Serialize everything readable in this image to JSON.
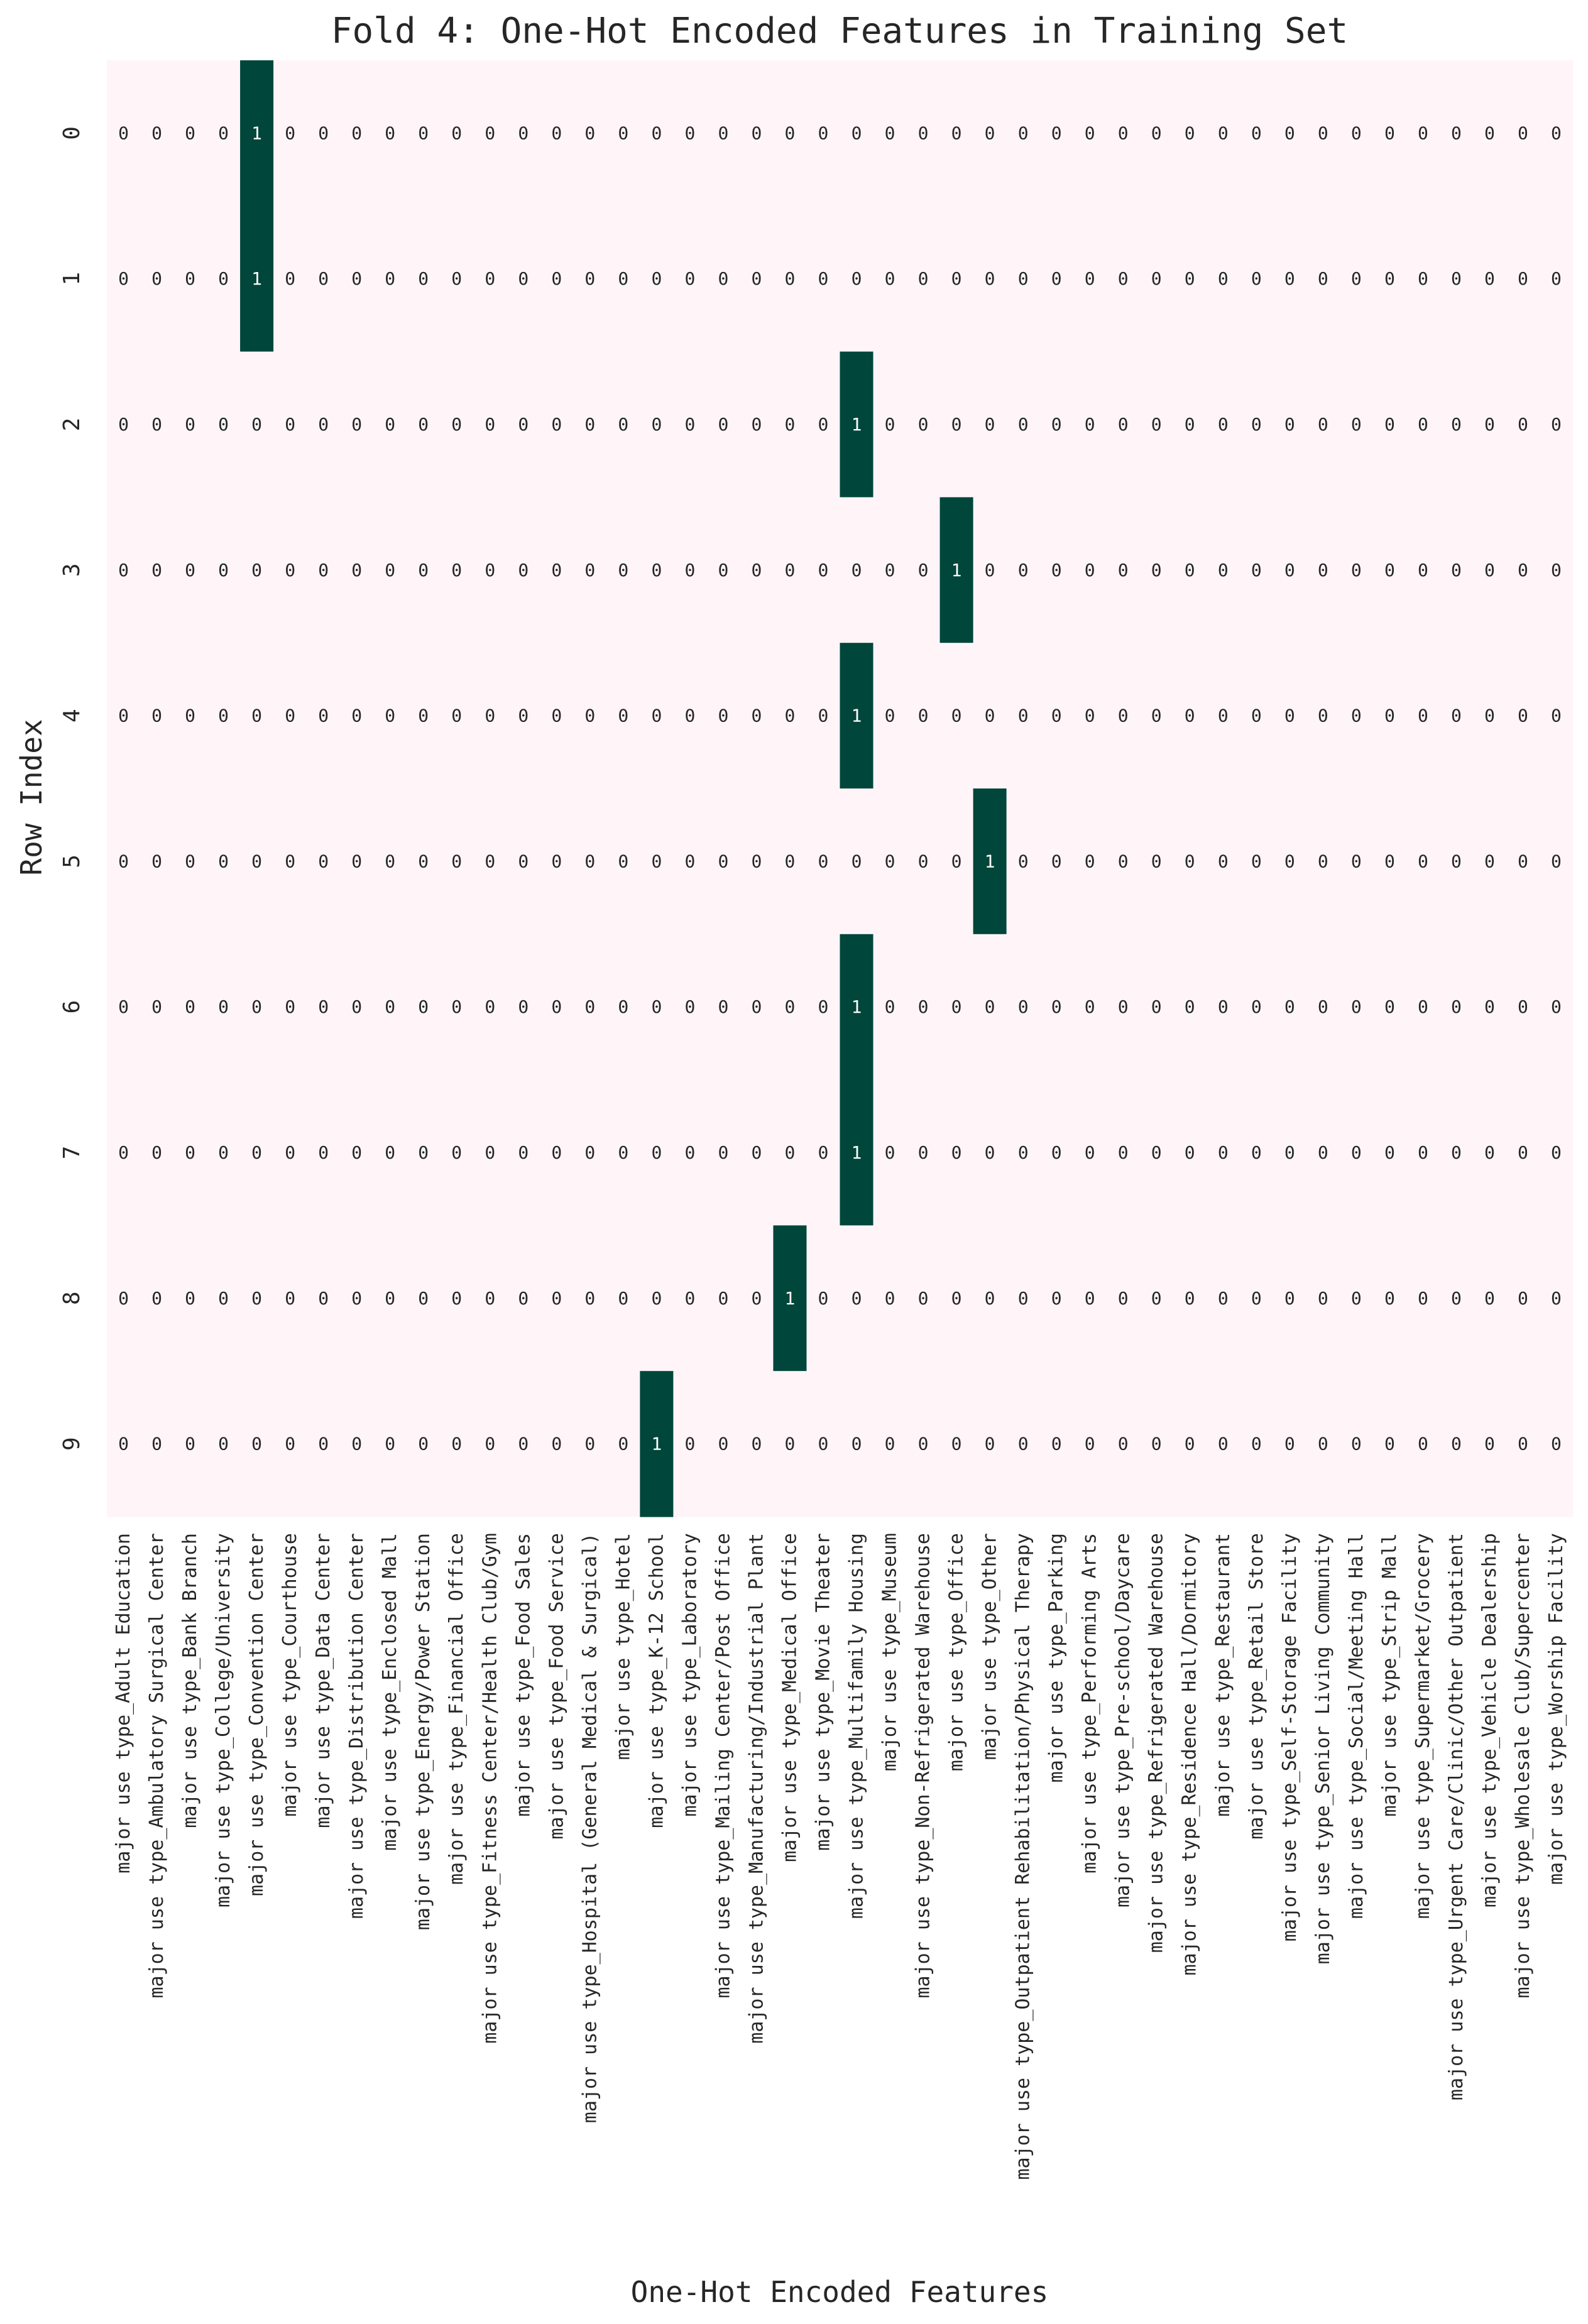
{
  "chart_data": {
    "type": "heatmap",
    "title": "Fold 4: One-Hot Encoded Features in Training Set",
    "xlabel": "One-Hot Encoded Features",
    "ylabel": "Row Index",
    "rows": [
      "0",
      "1",
      "2",
      "3",
      "4",
      "5",
      "6",
      "7",
      "8",
      "9"
    ],
    "columns": [
      "major use type_Adult Education",
      "major use type_Ambulatory Surgical Center",
      "major use type_Bank Branch",
      "major use type_College/University",
      "major use type_Convention Center",
      "major use type_Courthouse",
      "major use type_Data Center",
      "major use type_Distribution Center",
      "major use type_Enclosed Mall",
      "major use type_Energy/Power Station",
      "major use type_Financial Office",
      "major use type_Fitness Center/Health Club/Gym",
      "major use type_Food Sales",
      "major use type_Food Service",
      "major use type_Hospital (General Medical & Surgical)",
      "major use type_Hotel",
      "major use type_K-12 School",
      "major use type_Laboratory",
      "major use type_Mailing Center/Post Office",
      "major use type_Manufacturing/Industrial Plant",
      "major use type_Medical Office",
      "major use type_Movie Theater",
      "major use type_Multifamily Housing",
      "major use type_Museum",
      "major use type_Non-Refrigerated Warehouse",
      "major use type_Office",
      "major use type_Other",
      "major use type_Outpatient Rehabilitation/Physical Therapy",
      "major use type_Parking",
      "major use type_Performing Arts",
      "major use type_Pre-school/Daycare",
      "major use type_Refrigerated Warehouse",
      "major use type_Residence Hall/Dormitory",
      "major use type_Restaurant",
      "major use type_Retail Store",
      "major use type_Self-Storage Facility",
      "major use type_Senior Living Community",
      "major use type_Social/Meeting Hall",
      "major use type_Strip Mall",
      "major use type_Supermarket/Grocery",
      "major use type_Urgent Care/Clinic/Other Outpatient",
      "major use type_Vehicle Dealership",
      "major use type_Wholesale Club/Supercenter",
      "major use type_Worship Facility"
    ],
    "hot_index_per_row": [
      4,
      4,
      22,
      25,
      22,
      26,
      22,
      22,
      20,
      16
    ],
    "value_range": [
      0,
      1
    ],
    "colors": {
      "zero": "#fff5f8",
      "one": "#00463a",
      "text_zero": "#262626",
      "text_one": "#ffffff",
      "axis_text": "#262626"
    }
  }
}
